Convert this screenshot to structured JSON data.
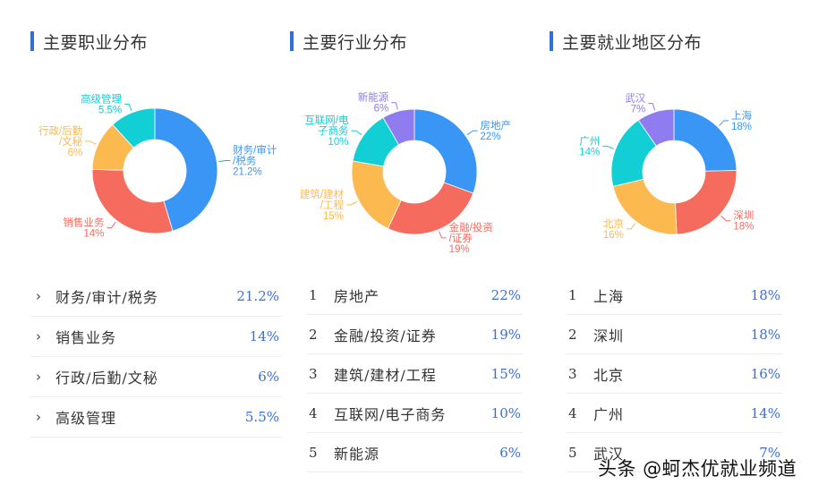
{
  "colors": {
    "blue": "#3a96f4",
    "red": "#f56c5f",
    "orange": "#fbb950",
    "cyan": "#12cfd6",
    "purple": "#8f7cf0",
    "accent": "#2f6fd6",
    "percent_text": "#3d6fd0"
  },
  "panels": [
    {
      "title": "主要职业分布",
      "list_style": "chevron",
      "items": [
        {
          "index": "",
          "name": "财务/审计/税务",
          "percent": "21.2%"
        },
        {
          "index": "",
          "name": "销售业务",
          "percent": "14%"
        },
        {
          "index": "",
          "name": "行政/后勤/文秘",
          "percent": "6%"
        },
        {
          "index": "",
          "name": "高级管理",
          "percent": "5.5%"
        }
      ]
    },
    {
      "title": "主要行业分布",
      "list_style": "numbered",
      "items": [
        {
          "index": "1",
          "name": "房地产",
          "percent": "22%"
        },
        {
          "index": "2",
          "name": "金融/投资/证券",
          "percent": "19%"
        },
        {
          "index": "3",
          "name": "建筑/建材/工程",
          "percent": "15%"
        },
        {
          "index": "4",
          "name": "互联网/电子商务",
          "percent": "10%"
        },
        {
          "index": "5",
          "name": "新能源",
          "percent": "6%"
        }
      ]
    },
    {
      "title": "主要就业地区分布",
      "list_style": "numbered",
      "items": [
        {
          "index": "1",
          "name": "上海",
          "percent": "18%"
        },
        {
          "index": "2",
          "name": "深圳",
          "percent": "18%"
        },
        {
          "index": "3",
          "name": "北京",
          "percent": "16%"
        },
        {
          "index": "4",
          "name": "广州",
          "percent": "14%"
        },
        {
          "index": "5",
          "name": "武汉",
          "percent": "7%"
        }
      ]
    }
  ],
  "chart_data": [
    {
      "type": "pie",
      "subtype": "donut",
      "title": "主要职业分布",
      "categories": [
        "财务/审计/税务",
        "销售业务",
        "行政/后勤/文秘",
        "高级管理"
      ],
      "values": [
        21.2,
        14,
        6,
        5.5
      ],
      "labels": [
        "财务/审计\n/税务\n21.2%",
        "销售业务\n14%",
        "行政/后勤\n/文秘\n6%",
        "高级管理\n5.5%"
      ],
      "colors": [
        "#3a96f4",
        "#f56c5f",
        "#fbb950",
        "#12cfd6"
      ],
      "start_angle": "12 o'clock, clockwise"
    },
    {
      "type": "pie",
      "subtype": "donut",
      "title": "主要行业分布",
      "categories": [
        "房地产",
        "金融/投资/证券",
        "建筑/建材/工程",
        "互联网/电子商务",
        "新能源"
      ],
      "values": [
        22,
        19,
        15,
        10,
        6
      ],
      "labels": [
        "房地产\n22%",
        "金融/投资\n/证券\n19%",
        "建筑/建材\n/工程\n15%",
        "互联网/电\n子商务\n10%",
        "新能源\n6%"
      ],
      "colors": [
        "#3a96f4",
        "#f56c5f",
        "#fbb950",
        "#12cfd6",
        "#8f7cf0"
      ],
      "start_angle": "12 o'clock, clockwise"
    },
    {
      "type": "pie",
      "subtype": "donut",
      "title": "主要就业地区分布",
      "categories": [
        "上海",
        "深圳",
        "北京",
        "广州",
        "武汉"
      ],
      "values": [
        18,
        18,
        16,
        14,
        7
      ],
      "labels": [
        "上海\n18%",
        "深圳\n18%",
        "北京\n16%",
        "广州\n14%",
        "武汉\n7%"
      ],
      "colors": [
        "#3a96f4",
        "#f56c5f",
        "#fbb950",
        "#12cfd6",
        "#8f7cf0"
      ],
      "start_angle": "12 o'clock, clockwise"
    }
  ],
  "watermark": "头条 @蚵杰优就业频道"
}
